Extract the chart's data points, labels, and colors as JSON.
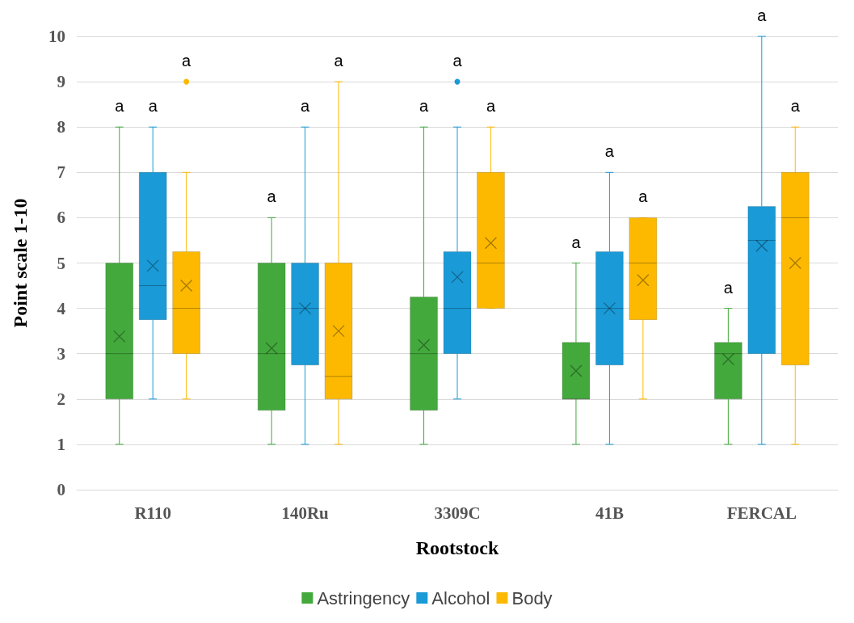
{
  "chart_data": {
    "type": "box",
    "xlabel": "Rootstock",
    "ylabel": "Point scale 1-10",
    "categories": [
      "R110",
      "140Ru",
      "3309C",
      "41B",
      "FERCAL"
    ],
    "ylim": [
      0,
      10
    ],
    "yticks": [
      0,
      1,
      2,
      3,
      4,
      5,
      6,
      7,
      8,
      9,
      10
    ],
    "grid": "y",
    "legend": "bottom",
    "series": [
      {
        "name": "Astringency",
        "color": "#43a93c",
        "boxes": [
          {
            "low": 1,
            "q1": 2,
            "median": 3,
            "q3": 5,
            "high": 8,
            "mean": 3.38
          },
          {
            "low": 1,
            "q1": 1.75,
            "median": 3,
            "q3": 5,
            "high": 6,
            "mean": 3.12
          },
          {
            "low": 1,
            "q1": 1.75,
            "median": 3,
            "q3": 4.25,
            "high": 8,
            "mean": 3.19
          },
          {
            "low": 1,
            "q1": 2,
            "median": 2,
            "q3": 3.25,
            "high": 5,
            "mean": 2.62
          },
          {
            "low": 1,
            "q1": 2,
            "median": 3,
            "q3": 3.25,
            "high": 4,
            "mean": 2.88
          }
        ]
      },
      {
        "name": "Alcohol",
        "color": "#1a9ad6",
        "boxes": [
          {
            "low": 2,
            "q1": 3.75,
            "median": 4.5,
            "q3": 7,
            "high": 8,
            "mean": 4.94
          },
          {
            "low": 1,
            "q1": 2.75,
            "median": 4,
            "q3": 5,
            "high": 8,
            "mean": 4
          },
          {
            "low": 2,
            "q1": 3,
            "median": 4,
            "q3": 5.25,
            "high": 8,
            "mean": 4.69,
            "outliers": [
              9
            ]
          },
          {
            "low": 1,
            "q1": 2.75,
            "median": 4,
            "q3": 5.25,
            "high": 7,
            "mean": 4
          },
          {
            "low": 1,
            "q1": 3,
            "median": 5.5,
            "q3": 6.25,
            "high": 10,
            "mean": 5.38
          }
        ]
      },
      {
        "name": "Body",
        "color": "#fdb900",
        "boxes": [
          {
            "low": 2,
            "q1": 3,
            "median": 4,
            "q3": 5.25,
            "high": 7,
            "mean": 4.5,
            "outliers": [
              9
            ]
          },
          {
            "low": 1,
            "q1": 2,
            "median": 2.5,
            "q3": 5,
            "high": 9,
            "mean": 3.5
          },
          {
            "low": 4,
            "q1": 4,
            "median": 5,
            "q3": 7,
            "high": 8,
            "mean": 5.44
          },
          {
            "low": 2,
            "q1": 3.75,
            "median": 5,
            "q3": 6,
            "high": 6,
            "mean": 4.62
          },
          {
            "low": 1,
            "q1": 2.75,
            "median": 6,
            "q3": 7,
            "high": 8,
            "mean": 5
          }
        ]
      }
    ],
    "annotations": [
      "a",
      "a",
      "a",
      "a",
      "a",
      "a",
      "a",
      "a",
      "a",
      "a",
      "a",
      "a",
      "a",
      "a",
      "a"
    ]
  }
}
